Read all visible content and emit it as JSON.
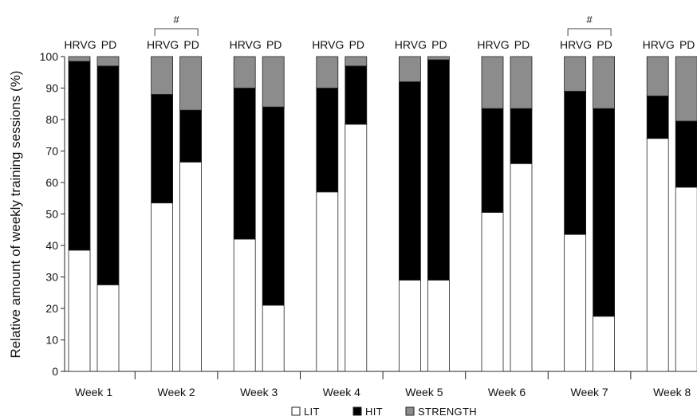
{
  "chart_data": {
    "type": "bar",
    "stacked": true,
    "normalized_percent": true,
    "ylabel": "Relative amount of weekly training sessions (%)",
    "xlabel": "",
    "ylim": [
      0,
      100
    ],
    "yticks": [
      0,
      10,
      20,
      30,
      40,
      50,
      60,
      70,
      80,
      90,
      100
    ],
    "grid": false,
    "legend_position": "bottom",
    "categories": [
      "Week 1",
      "Week 2",
      "Week 3",
      "Week 4",
      "Week 5",
      "Week 6",
      "Week 7",
      "Week 8"
    ],
    "groups": [
      "HRVG",
      "PD"
    ],
    "segments": [
      {
        "name": "LIT",
        "color": "#ffffff"
      },
      {
        "name": "HIT",
        "color": "#000000"
      },
      {
        "name": "STRENGTH",
        "color": "#8c8c8c"
      }
    ],
    "series": [
      {
        "group": "HRVG",
        "name": "LIT",
        "values": [
          38.5,
          53.5,
          42,
          57,
          29,
          50.5,
          43.5,
          74
        ]
      },
      {
        "group": "HRVG",
        "name": "HIT",
        "values": [
          60,
          34.5,
          48,
          33,
          63,
          33,
          45.5,
          13.5
        ]
      },
      {
        "group": "HRVG",
        "name": "STRENGTH",
        "values": [
          1.5,
          12,
          10,
          10,
          8,
          16.5,
          11,
          12.5
        ]
      },
      {
        "group": "PD",
        "name": "LIT",
        "values": [
          27.5,
          66.5,
          21,
          78.5,
          29,
          66,
          17.5,
          58.5
        ]
      },
      {
        "group": "PD",
        "name": "HIT",
        "values": [
          69.5,
          16.5,
          63,
          18.5,
          70,
          17.5,
          66,
          21
        ]
      },
      {
        "group": "PD",
        "name": "STRENGTH",
        "values": [
          3,
          17,
          16,
          3,
          1,
          16.5,
          16.5,
          20.5
        ]
      }
    ],
    "annotations": [
      {
        "category": "Week 2",
        "symbol": "#"
      },
      {
        "category": "Week 7",
        "symbol": "#"
      }
    ]
  }
}
